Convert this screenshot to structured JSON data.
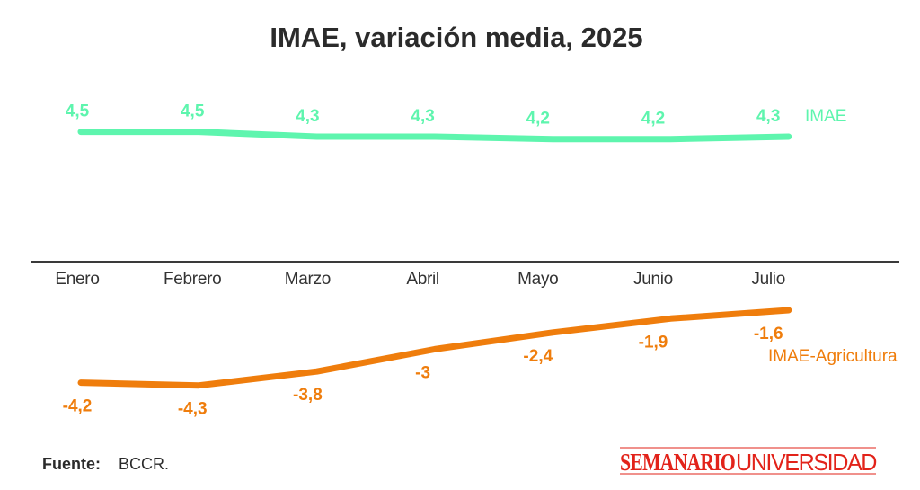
{
  "chart_data": {
    "type": "line",
    "title": "IMAE, variación media, 2025",
    "categories": [
      "Enero",
      "Febrero",
      "Marzo",
      "Abril",
      "Mayo",
      "Junio",
      "Julio"
    ],
    "series": [
      {
        "name": "IMAE",
        "color": "#5ef5ae",
        "values": [
          4.5,
          4.5,
          4.3,
          4.3,
          4.2,
          4.2,
          4.3
        ],
        "labels": [
          "4,5",
          "4,5",
          "4,3",
          "4,3",
          "4,2",
          "4,2",
          "4,3"
        ]
      },
      {
        "name": "IMAE-Agricultura",
        "color": "#ef7d0c",
        "values": [
          -4.2,
          -4.3,
          -3.8,
          -3.0,
          -2.4,
          -1.9,
          -1.6
        ],
        "labels": [
          "-4,2",
          "-4,3",
          "-3,8",
          "-3",
          "-2,4",
          "-1,9",
          "-1,6"
        ]
      }
    ],
    "xlabel": "",
    "ylabel": "",
    "grid": false,
    "legend": "inline-right"
  },
  "source": {
    "label": "Fuente:",
    "value": "BCCR."
  },
  "logo": {
    "bold": "SEMANARIO",
    "light": "UNIVERSIDAD",
    "color": "#e2231a"
  }
}
